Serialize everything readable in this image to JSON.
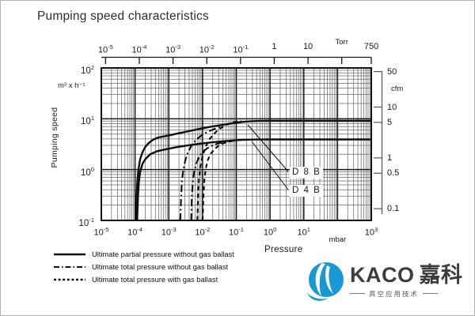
{
  "title": "Pumping speed characteristics",
  "ink_color": "#1a1a1a",
  "chart_data": {
    "type": "line",
    "title": "Pumping speed characteristics",
    "xlabel": "Pressure",
    "ylabel": "Pumping speed",
    "x_scale": "log",
    "y_scale": "log",
    "x_unit_bottom": "mbar",
    "x_unit_top": "Torr",
    "y_unit_left": "m³ x h⁻¹",
    "y_unit_right": "cfm",
    "x_range_mbar": [
      1e-05,
      1000.0
    ],
    "y_range_m3h": [
      0.1,
      100
    ],
    "grid": "log decades with minor lines",
    "legend_position": "bottom-left",
    "torr_per_mbar": 0.75,
    "cfm_per_m3h": 0.589,
    "series": [
      {
        "name": "D 8 B — ultimate partial pressure without gas ballast",
        "pump": "D 8 B",
        "style": "solid",
        "points": [
          [
            0.000105,
            0.1
          ],
          [
            0.000111,
            0.3
          ],
          [
            0.000117,
            0.6
          ],
          [
            0.000126,
            1.0
          ],
          [
            0.000141,
            1.6
          ],
          [
            0.000166,
            2.2
          ],
          [
            0.0002,
            2.8
          ],
          [
            0.00025,
            3.3
          ],
          [
            0.00035,
            3.9
          ],
          [
            0.0005,
            4.3
          ],
          [
            0.001,
            4.7
          ],
          [
            0.002,
            5.2
          ],
          [
            0.004,
            5.7
          ],
          [
            0.008,
            6.3
          ],
          [
            0.016,
            6.9
          ],
          [
            0.032,
            7.4
          ],
          [
            0.063,
            8.0
          ],
          [
            0.1,
            8.35
          ],
          [
            0.16,
            8.7
          ],
          [
            0.28,
            8.95
          ],
          [
            0.5,
            9.05
          ],
          [
            1,
            9.1
          ],
          [
            10,
            9.1
          ],
          [
            100,
            9.1
          ],
          [
            1000,
            9.1
          ]
        ]
      },
      {
        "name": "D 4 B — ultimate partial pressure without gas ballast",
        "pump": "D 4 B",
        "style": "solid",
        "points": [
          [
            0.000115,
            0.1
          ],
          [
            0.000122,
            0.3
          ],
          [
            0.000129,
            0.55
          ],
          [
            0.000141,
            0.9
          ],
          [
            0.000166,
            1.3
          ],
          [
            0.0002,
            1.6
          ],
          [
            0.00028,
            2.0
          ],
          [
            0.00045,
            2.3
          ],
          [
            0.0008,
            2.5
          ],
          [
            0.0016,
            2.75
          ],
          [
            0.0032,
            2.95
          ],
          [
            0.0063,
            3.15
          ],
          [
            0.013,
            3.35
          ],
          [
            0.025,
            3.5
          ],
          [
            0.05,
            3.65
          ],
          [
            0.09,
            3.75
          ],
          [
            0.14,
            3.83
          ],
          [
            0.22,
            3.88
          ],
          [
            0.4,
            3.9
          ],
          [
            1,
            3.92
          ],
          [
            10,
            3.92
          ],
          [
            100,
            3.92
          ],
          [
            1000,
            3.92
          ]
        ]
      },
      {
        "name": "D 8 B — ultimate total pressure without gas ballast",
        "pump": "D 8 B",
        "style": "dashdot",
        "points": [
          [
            0.0022,
            0.1
          ],
          [
            0.00232,
            0.3
          ],
          [
            0.00245,
            0.6
          ],
          [
            0.00269,
            1.0
          ],
          [
            0.0031,
            1.55
          ],
          [
            0.0037,
            2.2
          ],
          [
            0.0047,
            2.95
          ],
          [
            0.0063,
            3.8
          ],
          [
            0.0089,
            4.6
          ],
          [
            0.0132,
            5.4
          ],
          [
            0.02,
            6.1
          ],
          [
            0.03,
            6.8
          ],
          [
            0.04,
            7.2
          ]
        ]
      },
      {
        "name": "D 4 B — ultimate total pressure without gas ballast",
        "pump": "D 4 B",
        "style": "dashdot",
        "points": [
          [
            0.0046,
            0.1
          ],
          [
            0.00484,
            0.3
          ],
          [
            0.00513,
            0.55
          ],
          [
            0.00562,
            0.9
          ],
          [
            0.0065,
            1.3
          ],
          [
            0.0078,
            1.75
          ],
          [
            0.01,
            2.2
          ],
          [
            0.0135,
            2.6
          ],
          [
            0.019,
            2.95
          ],
          [
            0.028,
            3.25
          ],
          [
            0.042,
            3.45
          ],
          [
            0.063,
            3.6
          ]
        ]
      },
      {
        "name": "D 8 B — ultimate total pressure with gas ballast",
        "pump": "D 8 B",
        "style": "dashed",
        "points": [
          [
            0.007,
            0.1
          ],
          [
            0.0074,
            0.35
          ],
          [
            0.0079,
            0.7
          ],
          [
            0.0088,
            1.2
          ],
          [
            0.0102,
            1.9
          ],
          [
            0.0123,
            2.8
          ],
          [
            0.0158,
            3.9
          ],
          [
            0.0214,
            5.0
          ],
          [
            0.0295,
            6.1
          ],
          [
            0.042,
            7.1
          ],
          [
            0.059,
            7.9
          ],
          [
            0.083,
            8.5
          ],
          [
            0.112,
            8.85
          ],
          [
            0.141,
            9.0
          ]
        ]
      },
      {
        "name": "D 4 B — ultimate total pressure with gas ballast",
        "pump": "D 4 B",
        "style": "dashed",
        "points": [
          [
            0.01,
            0.1
          ],
          [
            0.0106,
            0.3
          ],
          [
            0.0112,
            0.6
          ],
          [
            0.0123,
            1.0
          ],
          [
            0.0141,
            1.5
          ],
          [
            0.017,
            2.0
          ],
          [
            0.022,
            2.5
          ],
          [
            0.03,
            2.95
          ],
          [
            0.042,
            3.3
          ],
          [
            0.06,
            3.55
          ],
          [
            0.09,
            3.72
          ],
          [
            0.126,
            3.82
          ]
        ]
      }
    ],
    "annotations": [
      "D 8 B",
      "D 4 B"
    ]
  },
  "axes": {
    "bottom": {
      "label": "Pressure",
      "unit": "mbar",
      "ticks": [
        {
          "base": "10",
          "sup": "-5",
          "value": 1e-05
        },
        {
          "base": "10",
          "sup": "-4",
          "value": 0.0001
        },
        {
          "base": "10",
          "sup": "-3",
          "value": 0.001
        },
        {
          "base": "10",
          "sup": "-2",
          "value": 0.01
        },
        {
          "base": "10",
          "sup": "-1",
          "value": 0.1
        },
        {
          "base": "10",
          "sup": "0",
          "value": 1
        },
        {
          "base": "10",
          "sup": "1",
          "value": 10
        },
        {
          "base": "mbar",
          "sup": "",
          "value": 100,
          "unit": true
        },
        {
          "base": "10",
          "sup": "3",
          "value": 1000
        }
      ]
    },
    "top": {
      "unit": "Torr",
      "ticks": [
        {
          "base": "10",
          "sup": "-5",
          "value": 1e-05
        },
        {
          "base": "10",
          "sup": "-4",
          "value": 0.0001
        },
        {
          "base": "10",
          "sup": "-3",
          "value": 0.001
        },
        {
          "base": "10",
          "sup": "-2",
          "value": 0.01
        },
        {
          "base": "10",
          "sup": "-1",
          "value": 0.1
        },
        {
          "base": "1",
          "sup": "",
          "value": 1
        },
        {
          "base": "10",
          "sup": "",
          "value": 10
        },
        {
          "base": "Torr",
          "sup": "",
          "value": 100,
          "unit": true
        },
        {
          "base": "750",
          "sup": "",
          "value": 750
        }
      ]
    },
    "left": {
      "label": "Pumping speed",
      "unit": "m³ x h⁻¹",
      "ticks": [
        {
          "base": "10",
          "sup": "2",
          "value": 100
        },
        {
          "base": "10",
          "sup": "1",
          "value": 10
        },
        {
          "base": "10",
          "sup": "0",
          "value": 1
        },
        {
          "base": "10",
          "sup": "-1",
          "value": 0.1
        }
      ]
    },
    "right": {
      "unit": "cfm",
      "ticks": [
        {
          "label": "50",
          "value": 50
        },
        {
          "label": "10",
          "value": 10
        },
        {
          "label": "5",
          "value": 5
        },
        {
          "label": "1",
          "value": 1
        },
        {
          "label": "0.5",
          "value": 0.5
        },
        {
          "label": "0.1",
          "value": 0.1
        }
      ]
    }
  },
  "annotations": {
    "d8b": "D 8 B",
    "d4b": "D 4 B"
  },
  "legend": {
    "items": [
      {
        "style": "solid",
        "label": "Ultimate partial pressure without gas ballast"
      },
      {
        "style": "dashdot",
        "label": "Ultimate total pressure without gas ballast"
      },
      {
        "style": "dashed",
        "label": "Ultimate total pressure with gas ballast"
      }
    ]
  },
  "logo": {
    "brand": "KACO",
    "brand_cn": "嘉科",
    "tagline": "真空应用技术",
    "accent_color": "#1898d4",
    "text_color": "#3d3d3d"
  }
}
